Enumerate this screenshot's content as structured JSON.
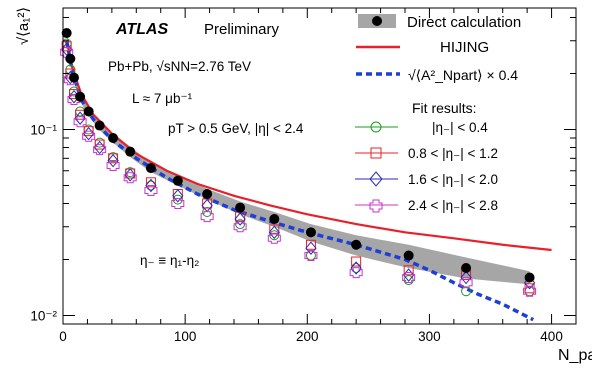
{
  "chart_data": {
    "type": "scatter",
    "ylabel": "√⟨a₁²⟩",
    "xlabel": "N_part",
    "xlim": [
      0,
      420
    ],
    "ylim": [
      0.009,
      0.45
    ],
    "yscale": "log",
    "x_ticks": [
      {
        "value": 0,
        "label": "0"
      },
      {
        "value": 100,
        "label": "100"
      },
      {
        "value": 200,
        "label": "200"
      },
      {
        "value": 300,
        "label": "300"
      },
      {
        "value": 400,
        "label": "400"
      }
    ],
    "y_ticks": [
      {
        "value": 0.01,
        "label": "10⁻²"
      },
      {
        "value": 0.1,
        "label": "10⁻¹"
      }
    ],
    "annotations": {
      "atlas": "ATLAS",
      "preliminary": "Preliminary",
      "system": "Pb+Pb, √sNN=2.76 TeV",
      "lumi": "L ≈ 7 μb⁻¹",
      "cuts": "pT > 0.5 GeV, |η| < 2.4",
      "eta_def": "η₋ ≡ η₁-η₂"
    },
    "legend": {
      "placement": "top-right",
      "direct": "Direct calculation",
      "hijing": "HIJING",
      "scaled": "√⟨A²_Npart⟩ × 0.4",
      "fit_title": "Fit results:",
      "fit_entries": [
        "|η₋| < 0.4",
        "0.8 < |η₋| < 1.2",
        "1.6 < |η₋| < 2.0",
        "2.4 < |η₋| < 2.8"
      ]
    },
    "colors": {
      "direct": "#000000",
      "band": "#a6a6a6",
      "hijing": "#e8202a",
      "scaled": "#1c3fd6",
      "fit_1": "#1a9c1a",
      "fit_2": "#e8202a",
      "fit_3": "#2a2ab8",
      "fit_4": "#cc33cc"
    },
    "series": [
      {
        "name": "Direct calculation",
        "x": [
          3,
          6,
          9,
          14,
          21,
          30,
          41,
          55,
          72,
          94,
          118,
          145,
          173,
          203,
          240,
          283,
          330,
          382
        ],
        "y": [
          0.33,
          0.24,
          0.19,
          0.15,
          0.125,
          0.105,
          0.09,
          0.076,
          0.062,
          0.053,
          0.045,
          0.038,
          0.033,
          0.028,
          0.024,
          0.021,
          0.018,
          0.016
        ],
        "band_low": [
          0.31,
          0.225,
          0.18,
          0.142,
          0.118,
          0.099,
          0.085,
          0.071,
          0.059,
          0.05,
          0.042,
          0.035,
          0.03,
          0.025,
          0.021,
          0.018,
          0.0158,
          0.0147
        ],
        "band_high": [
          0.35,
          0.255,
          0.2,
          0.158,
          0.132,
          0.111,
          0.095,
          0.081,
          0.066,
          0.056,
          0.048,
          0.041,
          0.036,
          0.031,
          0.027,
          0.024,
          0.0205,
          0.0173
        ]
      },
      {
        "name": "HIJING",
        "x": [
          3,
          8,
          15,
          25,
          40,
          60,
          85,
          110,
          140,
          170,
          200,
          240,
          280,
          320,
          360,
          400
        ],
        "y": [
          0.3,
          0.21,
          0.155,
          0.12,
          0.095,
          0.074,
          0.06,
          0.051,
          0.044,
          0.039,
          0.035,
          0.031,
          0.028,
          0.026,
          0.024,
          0.0225
        ]
      },
      {
        "name": "√⟨A²_Npart⟩ × 0.4",
        "x": [
          3,
          8,
          15,
          25,
          40,
          60,
          85,
          110,
          140,
          170,
          200,
          240,
          280,
          300,
          320,
          340,
          360,
          385
        ],
        "y": [
          0.3,
          0.2,
          0.145,
          0.113,
          0.088,
          0.07,
          0.055,
          0.045,
          0.037,
          0.032,
          0.028,
          0.024,
          0.02,
          0.0175,
          0.015,
          0.013,
          0.0115,
          0.0095
        ]
      },
      {
        "name": "|η₋| < 0.4",
        "x": [
          3,
          6,
          9,
          14,
          21,
          30,
          41,
          55,
          72,
          94,
          118,
          145,
          173,
          203,
          240,
          283,
          330,
          382
        ],
        "y": [
          0.29,
          0.21,
          0.16,
          0.125,
          0.1,
          0.085,
          0.071,
          0.059,
          0.05,
          0.042,
          0.036,
          0.031,
          0.027,
          0.021,
          0.018,
          0.0155,
          0.0135,
          0.0135
        ]
      },
      {
        "name": "0.8 < |η₋| < 1.2",
        "x": [
          3,
          6,
          9,
          14,
          21,
          30,
          41,
          55,
          72,
          94,
          118,
          145,
          173,
          203,
          240,
          283,
          330,
          382
        ],
        "y": [
          0.28,
          0.2,
          0.155,
          0.12,
          0.098,
          0.083,
          0.07,
          0.058,
          0.052,
          0.045,
          0.04,
          0.034,
          0.029,
          0.024,
          0.0195,
          0.0175,
          0.0165,
          0.014
        ]
      },
      {
        "name": "1.6 < |η₋| < 2.0",
        "x": [
          3,
          6,
          9,
          14,
          21,
          30,
          41,
          55,
          72,
          94,
          118,
          145,
          173,
          203,
          240,
          283,
          330,
          382
        ],
        "y": [
          0.27,
          0.19,
          0.15,
          0.115,
          0.095,
          0.08,
          0.068,
          0.057,
          0.05,
          0.044,
          0.039,
          0.033,
          0.028,
          0.023,
          0.018,
          0.0165,
          0.016,
          0.015
        ]
      },
      {
        "name": "2.4 < |η₋| < 2.8",
        "x": [
          3,
          6,
          9,
          14,
          21,
          30,
          41,
          55,
          72,
          94,
          118,
          145,
          173,
          203,
          240,
          283,
          330,
          382
        ],
        "y": [
          0.26,
          0.185,
          0.145,
          0.11,
          0.092,
          0.078,
          0.064,
          0.055,
          0.047,
          0.04,
          0.034,
          0.03,
          0.026,
          0.021,
          0.017,
          0.016,
          0.015,
          0.0135
        ]
      }
    ]
  }
}
